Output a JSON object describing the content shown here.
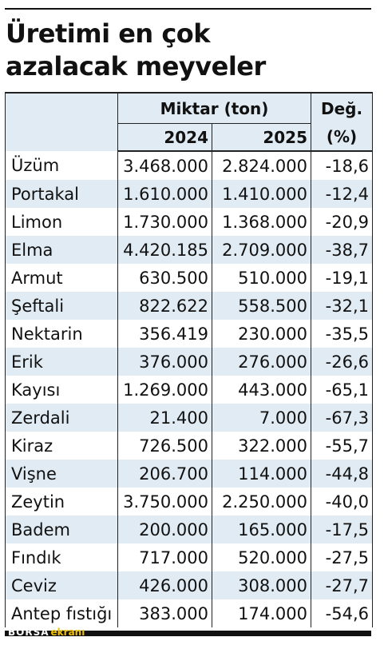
{
  "title_line1": "Üretimi en çok",
  "title_line2": "azalacak meyveler",
  "header": {
    "miktar": "Miktar (ton)",
    "year1": "2024",
    "year2": "2025",
    "deg_line1": "Değ.",
    "deg_line2": "(%)"
  },
  "rows": [
    {
      "name": "Üzüm",
      "y2024": "3.468.000",
      "y2025": "2.824.000",
      "change": "-18,6"
    },
    {
      "name": "Portakal",
      "y2024": "1.610.000",
      "y2025": "1.410.000",
      "change": "-12,4"
    },
    {
      "name": "Limon",
      "y2024": "1.730.000",
      "y2025": "1.368.000",
      "change": "-20,9"
    },
    {
      "name": "Elma",
      "y2024": "4.420.185",
      "y2025": "2.709.000",
      "change": "-38,7"
    },
    {
      "name": "Armut",
      "y2024": "630.500",
      "y2025": "510.000",
      "change": "-19,1"
    },
    {
      "name": "Şeftali",
      "y2024": "822.622",
      "y2025": "558.500",
      "change": "-32,1"
    },
    {
      "name": "Nektarin",
      "y2024": "356.419",
      "y2025": "230.000",
      "change": "-35,5"
    },
    {
      "name": "Erik",
      "y2024": "376.000",
      "y2025": "276.000",
      "change": "-26,6"
    },
    {
      "name": "Kayısı",
      "y2024": "1.269.000",
      "y2025": "443.000",
      "change": "-65,1"
    },
    {
      "name": "Zerdali",
      "y2024": "21.400",
      "y2025": "7.000",
      "change": "-67,3"
    },
    {
      "name": "Kiraz",
      "y2024": "726.500",
      "y2025": "322.000",
      "change": "-55,7"
    },
    {
      "name": "Vişne",
      "y2024": "206.700",
      "y2025": "114.000",
      "change": "-44,8"
    },
    {
      "name": "Zeytin",
      "y2024": "3.750.000",
      "y2025": "2.250.000",
      "change": "-40,0"
    },
    {
      "name": "Badem",
      "y2024": "200.000",
      "y2025": "165.000",
      "change": "-17,5"
    },
    {
      "name": "Fındık",
      "y2024": "717.000",
      "y2025": "520.000",
      "change": "-27,5"
    },
    {
      "name": "Ceviz",
      "y2024": "426.000",
      "y2025": "308.000",
      "change": "-27,7"
    },
    {
      "name": "Antep fıstığı",
      "y2024": "383.000",
      "y2025": "174.000",
      "change": "-54,6"
    }
  ],
  "logo": {
    "part1": "BORSA",
    "part2": "ekranı"
  },
  "colors": {
    "row_shade": "#e1ebf3",
    "border": "#222222",
    "logo_accent": "#f2c200"
  }
}
